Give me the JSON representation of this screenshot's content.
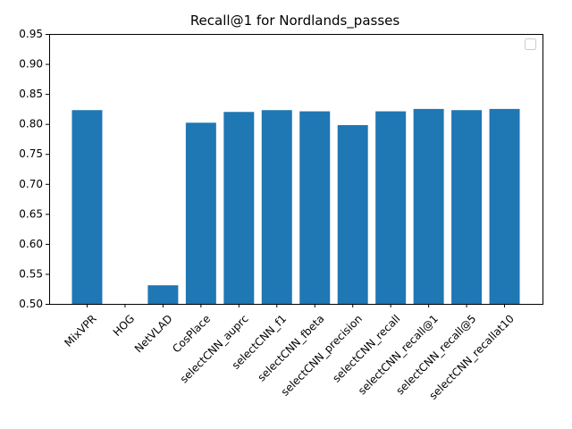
{
  "chart_data": {
    "type": "bar",
    "title": "Recall@1 for Nordlands_passes",
    "xlabel": "",
    "ylabel": "",
    "categories": [
      "MixVPR",
      "HOG",
      "NetVLAD",
      "CosPlace",
      "selectCNN_auprc",
      "selectCNN_f1",
      "selectCNN_fbeta",
      "selectCNN_precision",
      "selectCNN_recall",
      "selectCNN_recall@1",
      "selectCNN_recall@5",
      "selectCNN_recallat10"
    ],
    "values": [
      0.823,
      0.5,
      0.531,
      0.802,
      0.82,
      0.823,
      0.821,
      0.798,
      0.821,
      0.825,
      0.823,
      0.825
    ],
    "ylim": [
      0.5,
      0.95
    ],
    "yticks": [
      "0.50",
      "0.55",
      "0.60",
      "0.65",
      "0.70",
      "0.75",
      "0.80",
      "0.85",
      "0.90",
      "0.95"
    ],
    "xtick_rotation_deg": 45,
    "bar_color": "#1f77b4",
    "legend": {
      "shown": true,
      "placement": "upper right",
      "entries": []
    },
    "grid": false
  }
}
